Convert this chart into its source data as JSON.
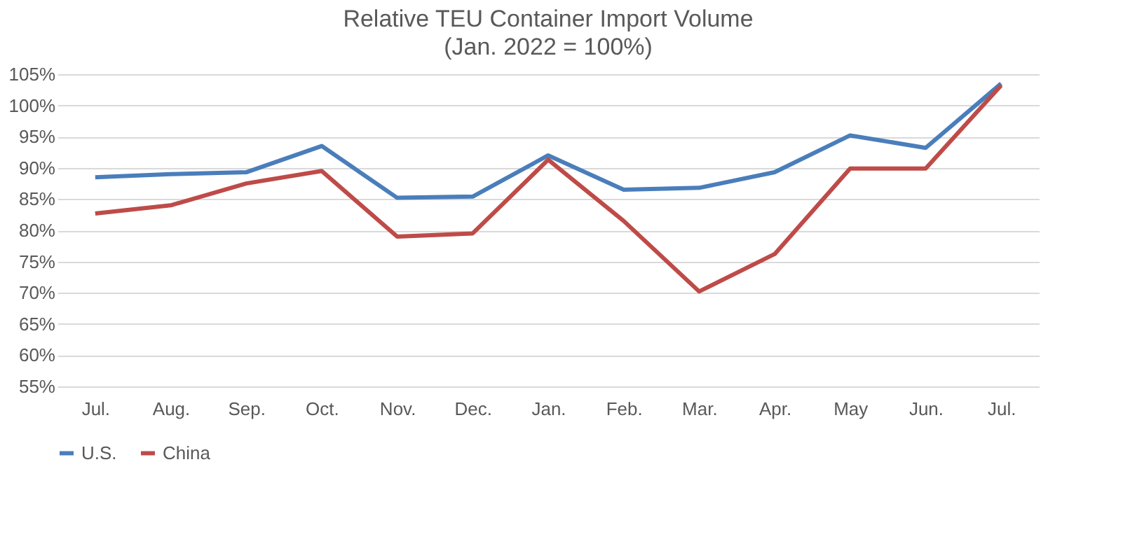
{
  "chart_data": {
    "type": "line",
    "title": "Relative TEU Container Import  Volume",
    "subtitle": "(Jan. 2022 = 100%)",
    "categories": [
      "Jul.",
      "Aug.",
      "Sep.",
      "Oct.",
      "Nov.",
      "Dec.",
      "Jan.",
      "Feb.",
      "Mar.",
      "Apr.",
      "May",
      "Jun.",
      "Jul."
    ],
    "series": [
      {
        "name": "U.S.",
        "color": "#4a7ebb",
        "values": [
          88.5,
          89,
          89.3,
          93.5,
          85.2,
          85.4,
          92,
          86.5,
          86.8,
          89.3,
          95.2,
          93.2,
          103.5
        ]
      },
      {
        "name": "China",
        "color": "#be4b48",
        "values": [
          82.7,
          84,
          87.5,
          89.5,
          79,
          79.5,
          91.3,
          81.5,
          70.2,
          76.2,
          89.9,
          89.9,
          103.2
        ]
      }
    ],
    "ylim": [
      55,
      105
    ],
    "yticks": [
      {
        "value": 55,
        "label": "55%"
      },
      {
        "value": 60,
        "label": "60%"
      },
      {
        "value": 65,
        "label": "65%"
      },
      {
        "value": 70,
        "label": "70%"
      },
      {
        "value": 75,
        "label": "75%"
      },
      {
        "value": 80,
        "label": "80%"
      },
      {
        "value": 85,
        "label": "85%"
      },
      {
        "value": 90,
        "label": "90%"
      },
      {
        "value": 95,
        "label": "95%"
      },
      {
        "value": 100,
        "label": "100%"
      },
      {
        "value": 105,
        "label": "105%"
      }
    ],
    "grid": "y",
    "legend": "bottom",
    "marker": "none",
    "line_style": "solid"
  }
}
